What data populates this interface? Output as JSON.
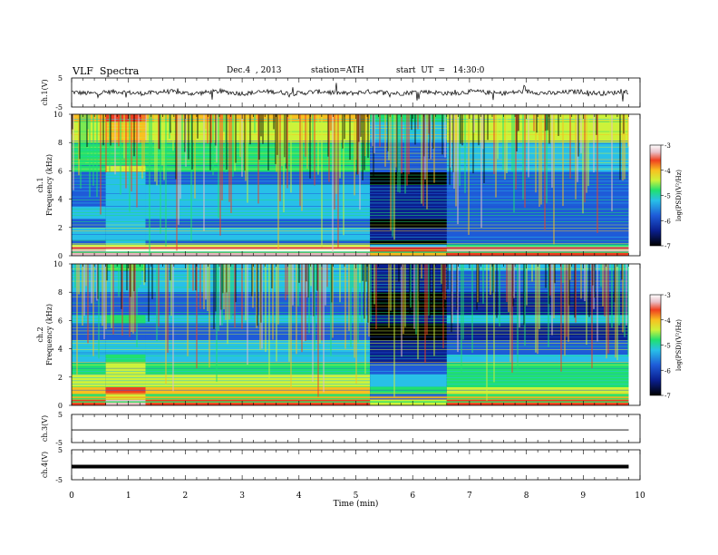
{
  "header": {
    "title": "VLF  Spectra",
    "date": "Dec.4  , 2013",
    "station": "station=ATH",
    "start": "start  UT  =   14:30:0"
  },
  "colors": {
    "colormap": [
      "#000000",
      "#0a1f8f",
      "#1e5bd8",
      "#28c0e8",
      "#20e070",
      "#cdf23a",
      "#f8c020",
      "#f04020",
      "#e8c0c8",
      "#ffffff"
    ],
    "trace": "#000000"
  },
  "chart_data": [
    {
      "type": "line",
      "panel": "ch1-waveform",
      "ylabel": "ch.1(V)",
      "ylim": [
        -5,
        5
      ],
      "yticks": [
        "5",
        "-5"
      ],
      "x_range_min": [
        0,
        9.8
      ],
      "description_values": {
        "baseline_v": 0,
        "typical_amplitude_v": 0.8
      }
    },
    {
      "type": "heatmap",
      "panel": "ch1-spectrogram",
      "ylabel_line1": "ch.1",
      "ylabel_line2": "Frequency  (kHz)",
      "ylim": [
        0,
        10
      ],
      "yticks": [
        "0",
        "2",
        "4",
        "6",
        "8",
        "10"
      ],
      "colorbar": {
        "label": "log(PSD)(V²/Hz)",
        "ticks": [
          "-3",
          "-4",
          "-5",
          "-6",
          "-7"
        ],
        "range": [
          -7,
          -3
        ]
      },
      "segments_min": [
        0,
        0.6,
        1.3,
        5.25,
        6.6,
        9.8
      ]
    },
    {
      "type": "heatmap",
      "panel": "ch2-spectrogram",
      "ylabel_line1": "ch.2",
      "ylabel_line2": "Frequency  (kHz)",
      "ylim": [
        0,
        10
      ],
      "yticks": [
        "0",
        "2",
        "4",
        "6",
        "8",
        "10"
      ],
      "colorbar": {
        "label": "log(PSD)(V²/Hz)",
        "ticks": [
          "-3",
          "-4",
          "-5",
          "-6",
          "-7"
        ],
        "range": [
          -7,
          -3
        ]
      },
      "segments_min": [
        0,
        0.6,
        1.3,
        5.25,
        6.6,
        9.8
      ]
    },
    {
      "type": "line",
      "panel": "ch3-waveform",
      "ylabel": "ch.3(V)",
      "ylim": [
        -5,
        5
      ],
      "yticks": [
        "5",
        "-5"
      ],
      "x_range_min": [
        0,
        9.8
      ]
    },
    {
      "type": "line",
      "panel": "ch4-waveform",
      "ylabel": "ch.4(V)",
      "ylim": [
        -5,
        5
      ],
      "yticks": [
        "5",
        "-5"
      ],
      "x_range_min": [
        0,
        9.8
      ]
    }
  ],
  "xaxis": {
    "label": "Time  (min)",
    "ticks": [
      "0",
      "1",
      "2",
      "3",
      "4",
      "5",
      "6",
      "7",
      "8",
      "9",
      "10"
    ],
    "xlim": [
      0,
      10
    ]
  }
}
